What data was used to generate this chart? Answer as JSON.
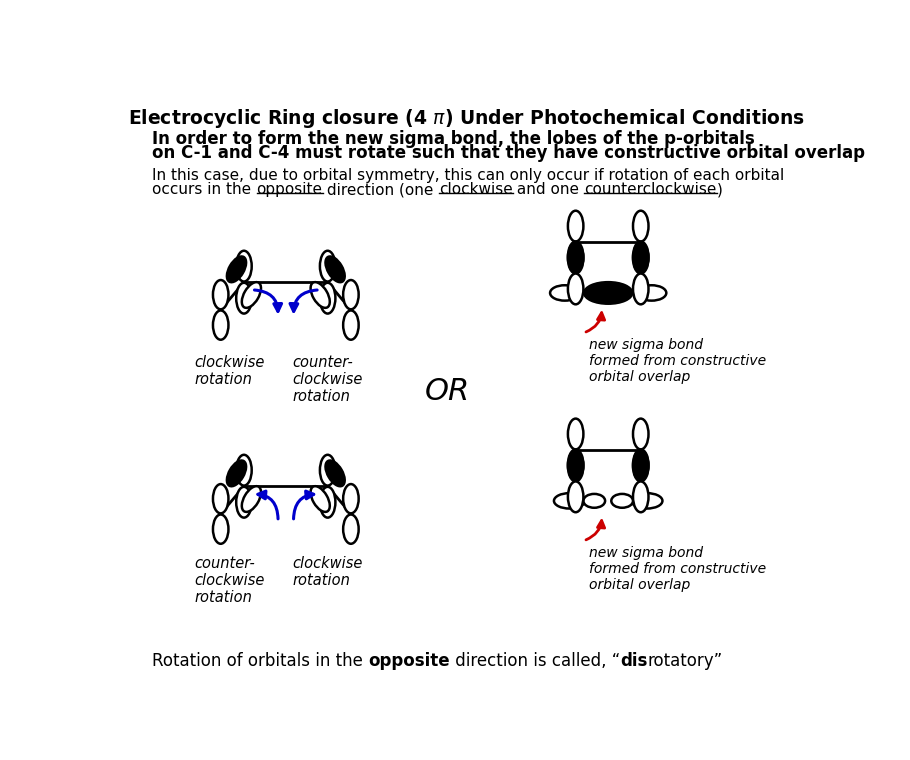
{
  "bg": "#ffffff",
  "blk": "#000000",
  "blue": "#0000cc",
  "red": "#cc0000",
  "title": "Electrocyclic Ring closure (4 π) Under Photochemical Conditions",
  "subtitle_line1": "In order to form the new sigma bond, the lobes of the p-orbitals",
  "subtitle_line2": "on C-1 and C-4 must rotate such that they have constructive orbital overlap",
  "body1": "In this case, due to orbital symmetry, this can only occur if rotation of each orbital",
  "body2_pre": "occurs in the ",
  "body2_opp": "opposite",
  "body2_mid": " direction (one ",
  "body2_cw": "clockwise",
  "body2_and": " and one ",
  "body2_ccw": "counterclockwise",
  "body2_end": ")",
  "or_text": "OR",
  "cw_label": "clockwise\nrotation",
  "ccw_label": "counter-\nclockwise\nrotation",
  "sigma_label": "new sigma bond\nformed from constructive\norbital overlap",
  "footer_pre": "Rotation of orbitals in the ",
  "footer_bold": "opposite",
  "footer_mid": " direction is called, “",
  "footer_disbold": "dis",
  "footer_end": "rotatory”"
}
